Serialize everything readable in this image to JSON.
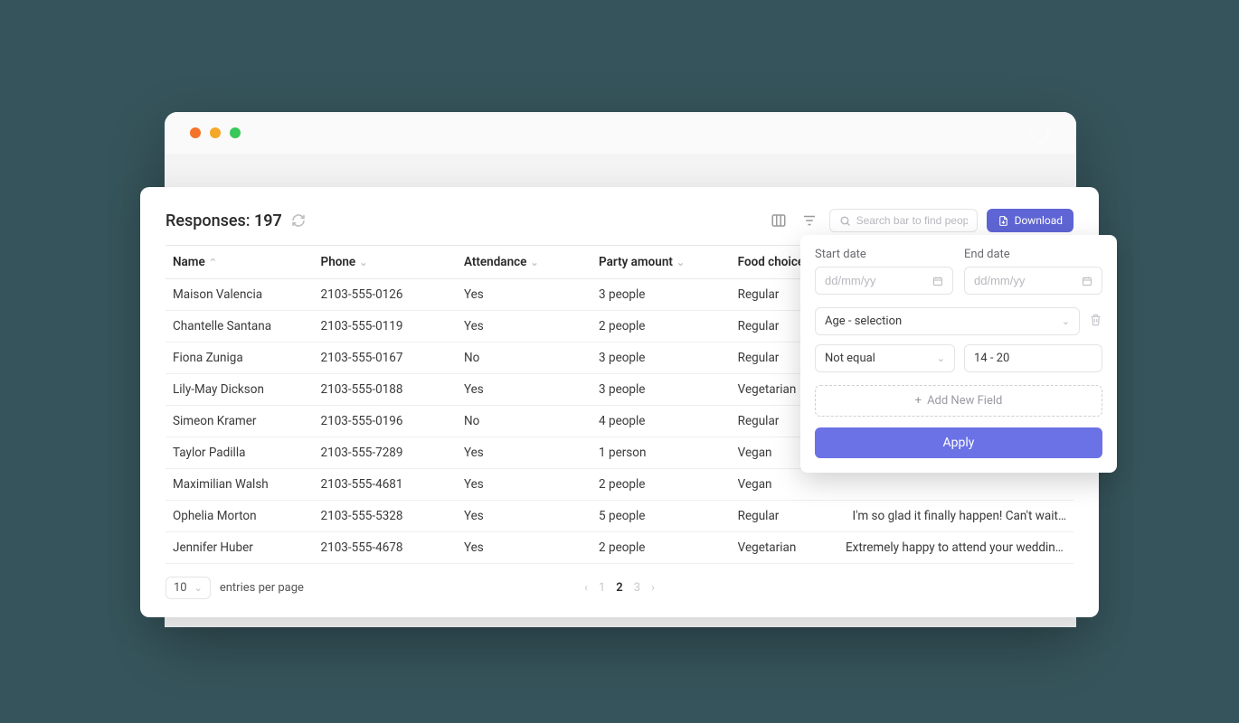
{
  "header": {
    "responses_label": "Responses:",
    "responses_count": "197",
    "search_placeholder": "Search bar to find people",
    "download_label": "Download"
  },
  "columns": {
    "name": "Name",
    "phone": "Phone",
    "attendance": "Attendance",
    "party": "Party amount",
    "food": "Food choice"
  },
  "rows": [
    {
      "name": "Maison Valencia",
      "phone": "2103-555-0126",
      "attendance": "Yes",
      "party": "3 people",
      "food": "Regular",
      "notes": ""
    },
    {
      "name": "Chantelle Santana",
      "phone": "2103-555-0119",
      "attendance": "Yes",
      "party": "2 people",
      "food": "Regular",
      "notes": ""
    },
    {
      "name": "Fiona Zuniga",
      "phone": "2103-555-0167",
      "attendance": "No",
      "party": "3 people",
      "food": "Regular",
      "notes": ""
    },
    {
      "name": "Lily-May Dickson",
      "phone": "2103-555-0188",
      "attendance": "Yes",
      "party": "3 people",
      "food": "Vegetarian",
      "notes": ""
    },
    {
      "name": "Simeon Kramer",
      "phone": "2103-555-0196",
      "attendance": "No",
      "party": "4 people",
      "food": "Regular",
      "notes": ""
    },
    {
      "name": "Taylor Padilla",
      "phone": "2103-555-7289",
      "attendance": "Yes",
      "party": "1 person",
      "food": "Vegan",
      "notes": ""
    },
    {
      "name": "Maximilian Walsh",
      "phone": "2103-555-4681",
      "attendance": "Yes",
      "party": "2 people",
      "food": "Vegan",
      "notes": ""
    },
    {
      "name": "Ophelia Morton",
      "phone": "2103-555-5328",
      "attendance": "Yes",
      "party": "5 people",
      "food": "Regular",
      "notes": "I'm so glad it finally happen! Can't wait…"
    },
    {
      "name": "Jennifer Huber",
      "phone": "2103-555-4678",
      "attendance": "Yes",
      "party": "2 people",
      "food": "Vegetarian",
      "notes": "Extremely happy to attend your wedding…"
    }
  ],
  "pager": {
    "page_size": "10",
    "per_page_label": "entries per page",
    "pages": [
      "1",
      "2",
      "3"
    ],
    "active_index": 1
  },
  "filter": {
    "start_label": "Start date",
    "end_label": "End date",
    "date_placeholder": "dd/mm/yy",
    "field_select": "Age - selection",
    "operator": "Not equal",
    "value": "14 - 20",
    "add_label": "Add New Field",
    "apply_label": "Apply"
  },
  "colors": {
    "accent": "#5f65d4",
    "accent_light": "#6b72e5",
    "page_bg": "#36545b"
  }
}
